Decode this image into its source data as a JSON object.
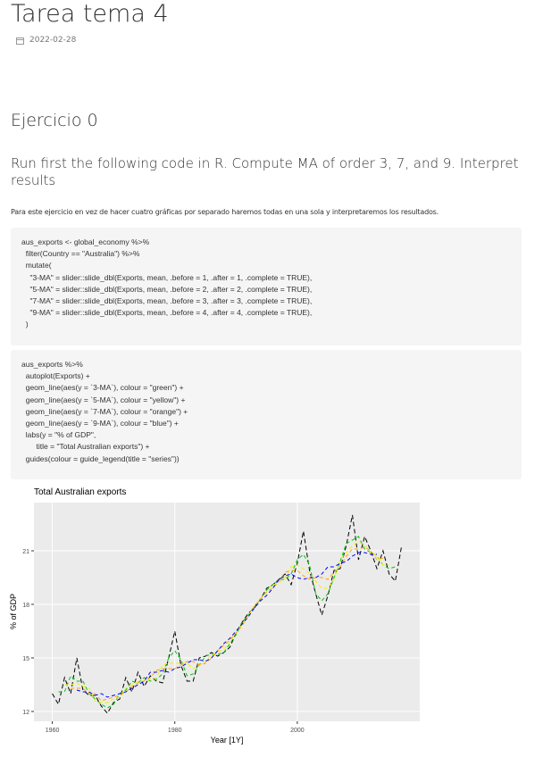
{
  "header": {
    "title": "Tarea tema 4",
    "date": "2022-02-28"
  },
  "section": {
    "heading": "Ejercicio 0",
    "subheading": "Run first the following code in R. Compute MA of order 3, 7, and 9. Interpret results",
    "paragraph": "Para este ejercicio en vez de hacer cuatro gráficas por separado haremos todas en una sola y interpretaremos los resultados.",
    "code_blocks": [
      [
        "aus_exports <- global_economy %>%",
        "  filter(Country == \"Australia\") %>%",
        "  mutate(",
        "    \"3-MA\" = slider::slide_dbl(Exports, mean, .before = 1, .after = 1, .complete = TRUE),",
        "    \"5-MA\" = slider::slide_dbl(Exports, mean, .before = 2, .after = 2, .complete = TRUE),",
        "    \"7-MA\" = slider::slide_dbl(Exports, mean, .before = 3, .after = 3, .complete = TRUE),",
        "    \"9-MA\" = slider::slide_dbl(Exports, mean, .before = 4, .after = 4, .complete = TRUE),",
        "  )"
      ],
      [
        "aus_exports %>%",
        "  autoplot(Exports) +",
        "  geom_line(aes(y = `3-MA`), colour = \"green\") +",
        "  geom_line(aes(y = `5-MA`), colour = \"yellow\") +",
        "  geom_line(aes(y = `7-MA`), colour = \"orange\") +",
        "  geom_line(aes(y = `9-MA`), colour = \"blue\") +",
        "  labs(y = \"% of GDP\",",
        "       title = \"Total Australian exports\") +",
        "  guides(colour = guide_legend(title = \"series\"))"
      ]
    ]
  },
  "chart_data": {
    "type": "line",
    "title": "Total Australian exports",
    "x_label": "Year [1Y]",
    "y_label": "% of GDP",
    "x": [
      1960,
      1961,
      1962,
      1963,
      1964,
      1965,
      1966,
      1967,
      1968,
      1969,
      1970,
      1971,
      1972,
      1973,
      1974,
      1975,
      1976,
      1977,
      1978,
      1979,
      1980,
      1981,
      1982,
      1983,
      1984,
      1985,
      1986,
      1987,
      1988,
      1989,
      1990,
      1991,
      1992,
      1993,
      1994,
      1995,
      1996,
      1997,
      1998,
      1999,
      2000,
      2001,
      2002,
      2003,
      2004,
      2005,
      2006,
      2007,
      2008,
      2009,
      2010,
      2011,
      2012,
      2013,
      2014,
      2015,
      2016,
      2017
    ],
    "series": [
      {
        "color": "#000000",
        "values": [
          13.0,
          12.4,
          13.9,
          13.0,
          15.0,
          13.2,
          12.9,
          12.9,
          12.3,
          11.9,
          12.5,
          12.7,
          13.9,
          13.1,
          14.2,
          13.4,
          14.0,
          13.7,
          13.6,
          15.0,
          16.5,
          14.6,
          13.7,
          13.7,
          15.0,
          15.1,
          15.3,
          15.1,
          15.3,
          15.6,
          16.4,
          17.0,
          17.5,
          17.8,
          18.3,
          18.9,
          19.1,
          19.4,
          19.7,
          19.1,
          20.3,
          22.1,
          19.9,
          18.6,
          17.4,
          18.5,
          19.9,
          20.0,
          21.3,
          23.0,
          20.5,
          21.8,
          21.0,
          20.0,
          21.0,
          19.7,
          19.3,
          21.2
        ]
      },
      {
        "color": "#00c800",
        "values": [
          null,
          13.1,
          13.1,
          14.0,
          13.7,
          13.7,
          13.0,
          12.7,
          12.4,
          12.2,
          12.4,
          13.0,
          13.2,
          13.7,
          13.6,
          13.9,
          13.7,
          13.8,
          14.1,
          15.0,
          15.4,
          14.9,
          14.0,
          14.1,
          14.6,
          15.1,
          15.2,
          15.2,
          15.3,
          15.8,
          16.3,
          17.0,
          17.4,
          17.9,
          18.3,
          18.8,
          19.1,
          19.4,
          19.4,
          19.7,
          20.5,
          20.8,
          20.2,
          18.6,
          18.2,
          18.6,
          19.5,
          20.4,
          21.4,
          21.6,
          21.8,
          21.1,
          20.9,
          20.7,
          20.2,
          20.0,
          20.1,
          null
        ]
      },
      {
        "color": "#f0f000",
        "values": [
          null,
          null,
          13.5,
          13.5,
          13.6,
          13.4,
          13.3,
          12.6,
          12.5,
          12.5,
          12.7,
          12.8,
          13.3,
          13.5,
          13.7,
          13.7,
          13.8,
          13.9,
          14.6,
          14.7,
          14.7,
          14.7,
          14.7,
          14.4,
          14.6,
          14.8,
          15.2,
          15.3,
          15.5,
          15.9,
          16.4,
          16.9,
          17.4,
          17.9,
          18.3,
          18.7,
          19.1,
          19.2,
          19.5,
          20.1,
          20.2,
          20.0,
          19.7,
          19.3,
          18.9,
          18.9,
          19.4,
          20.5,
          20.9,
          21.3,
          21.5,
          21.3,
          20.9,
          20.7,
          20.2,
          20.2,
          null,
          null
        ]
      },
      {
        "color": "#ffa500",
        "values": [
          null,
          null,
          null,
          13.3,
          13.3,
          13.3,
          13.0,
          13.0,
          12.6,
          12.7,
          12.8,
          12.9,
          13.1,
          13.4,
          13.6,
          13.7,
          13.9,
          14.3,
          14.4,
          14.4,
          14.4,
          14.6,
          14.8,
          14.8,
          14.6,
          14.7,
          15.0,
          15.4,
          15.7,
          16.0,
          16.4,
          16.8,
          17.4,
          17.9,
          18.3,
          18.7,
          18.9,
          19.3,
          19.8,
          19.9,
          19.9,
          19.6,
          19.4,
          19.5,
          19.5,
          19.4,
          19.8,
          20.1,
          20.7,
          21.1,
          21.1,
          21.2,
          21.0,
          20.5,
          20.6,
          null,
          null,
          null
        ]
      },
      {
        "color": "#0000ff",
        "values": [
          null,
          null,
          null,
          null,
          13.2,
          13.1,
          13.1,
          12.9,
          13.0,
          12.8,
          12.9,
          13.0,
          13.1,
          13.3,
          13.5,
          13.7,
          14.2,
          14.2,
          14.3,
          14.2,
          14.4,
          14.5,
          14.7,
          14.9,
          14.9,
          14.8,
          15.0,
          15.4,
          15.8,
          16.1,
          16.5,
          16.9,
          17.3,
          17.8,
          18.2,
          18.5,
          18.9,
          19.4,
          19.6,
          19.7,
          19.5,
          19.4,
          19.5,
          19.5,
          19.7,
          20.1,
          20.1,
          20.3,
          20.4,
          20.7,
          20.9,
          20.9,
          20.8,
          20.8,
          null,
          null,
          null,
          null
        ]
      }
    ],
    "xlim": [
      1957,
      2020
    ],
    "xticks": [
      1960,
      1980,
      2000
    ],
    "ylim": [
      11.45,
      23.7
    ],
    "yticks": [
      12,
      15,
      18,
      21
    ],
    "grid": true
  }
}
